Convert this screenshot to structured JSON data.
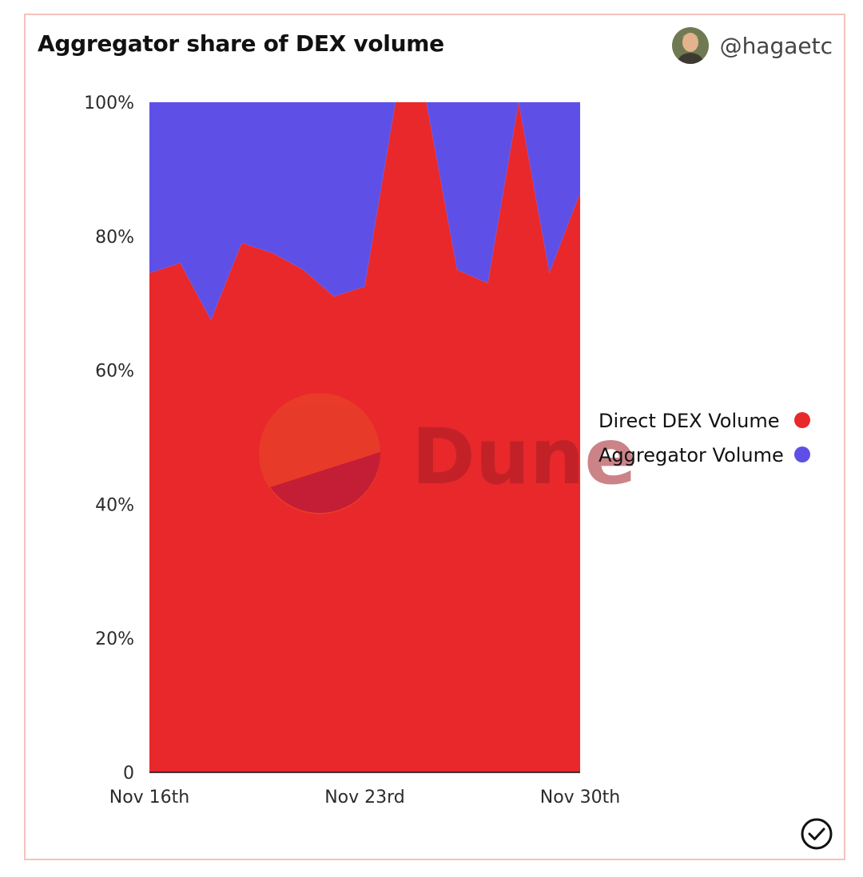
{
  "header": {
    "title": "Aggregator share of DEX volume",
    "author": "@hagaetc"
  },
  "watermark": {
    "text": "Dune"
  },
  "colors": {
    "direct": "#e8282b",
    "aggregator": "#5e50e6",
    "border": "#f3c3bd"
  },
  "icons": {
    "avatar": "user-avatar",
    "status": "check-circle-icon"
  },
  "chart_data": {
    "type": "area",
    "stacked": true,
    "normalized": true,
    "x": [
      "2023-11-16",
      "2023-11-17",
      "2023-11-18",
      "2023-11-19",
      "2023-11-20",
      "2023-11-21",
      "2023-11-22",
      "2023-11-23",
      "2023-11-24",
      "2023-11-25",
      "2023-11-26",
      "2023-11-27",
      "2023-11-28",
      "2023-11-29",
      "2023-11-30"
    ],
    "series": [
      {
        "name": "Direct DEX Volume",
        "color": "#e8282b",
        "values": [
          74.5,
          76,
          67.5,
          79,
          77.5,
          75,
          71,
          72.5,
          100,
          100,
          75,
          73,
          100,
          74.5,
          86.5
        ]
      },
      {
        "name": "Aggregator Volume",
        "color": "#5e50e6",
        "values": [
          25.5,
          24,
          32.5,
          21,
          22.5,
          25,
          29,
          27.5,
          0,
          0,
          25,
          27,
          0,
          25.5,
          13.5
        ]
      }
    ],
    "x_ticks": [
      {
        "index": 0,
        "label": "Nov 16th"
      },
      {
        "index": 7,
        "label": "Nov 23rd"
      },
      {
        "index": 14,
        "label": "Nov 30th"
      }
    ],
    "y_ticks": [
      {
        "value": 0,
        "label": "0"
      },
      {
        "value": 20,
        "label": "20%"
      },
      {
        "value": 40,
        "label": "40%"
      },
      {
        "value": 60,
        "label": "60%"
      },
      {
        "value": 80,
        "label": "80%"
      },
      {
        "value": 100,
        "label": "100%"
      }
    ],
    "ylim": [
      0,
      100
    ],
    "legend": {
      "position": "right",
      "items": [
        {
          "label": "Direct DEX Volume",
          "color": "#e8282b"
        },
        {
          "label": "Aggregator Volume",
          "color": "#5e50e6"
        }
      ]
    },
    "grid": false
  }
}
